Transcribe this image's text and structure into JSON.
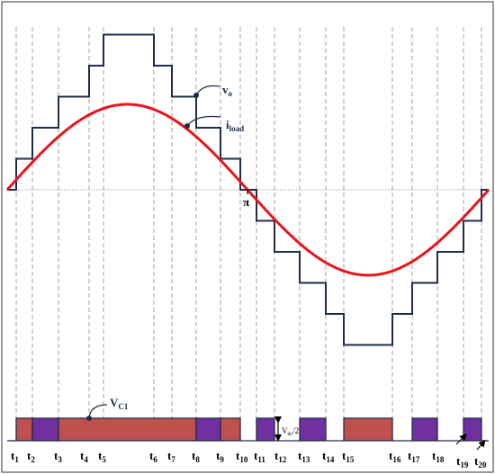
{
  "labels": {
    "vo_main": "v",
    "vo_sub": "o",
    "iload_main": "i",
    "iload_sub": "load",
    "vc1_main": "V",
    "vc1_sub": "C1",
    "vdc_main": "V",
    "vdc_sub": "dc",
    "vdc_tail": "/2",
    "pi": "π"
  },
  "time_ticks": [
    {
      "main": "t",
      "sub": "1"
    },
    {
      "main": "t",
      "sub": "2"
    },
    {
      "main": "t",
      "sub": "3"
    },
    {
      "main": "t",
      "sub": "4"
    },
    {
      "main": "t",
      "sub": "5"
    },
    {
      "main": "t",
      "sub": "6"
    },
    {
      "main": "t",
      "sub": "7"
    },
    {
      "main": "t",
      "sub": "8"
    },
    {
      "main": "t",
      "sub": "9"
    },
    {
      "main": "t",
      "sub": "10"
    },
    {
      "main": "t",
      "sub": "11"
    },
    {
      "main": "t",
      "sub": "12"
    },
    {
      "main": "t",
      "sub": "13"
    },
    {
      "main": "t",
      "sub": "14"
    },
    {
      "main": "t",
      "sub": "15"
    },
    {
      "main": "t",
      "sub": "16"
    },
    {
      "main": "t",
      "sub": "17"
    },
    {
      "main": "t",
      "sub": "18"
    },
    {
      "main": "t",
      "sub": "19"
    },
    {
      "main": "t",
      "sub": "20"
    }
  ],
  "colors": {
    "staircase": "#1f2d4a",
    "current": "#e8151b",
    "charging": "#c0504d",
    "discharging": "#7030a0",
    "bar_outline": "#1f2d4a",
    "guide": "#8c8c8c",
    "text": "#000000",
    "label_text": "#1f2d4a"
  }
}
